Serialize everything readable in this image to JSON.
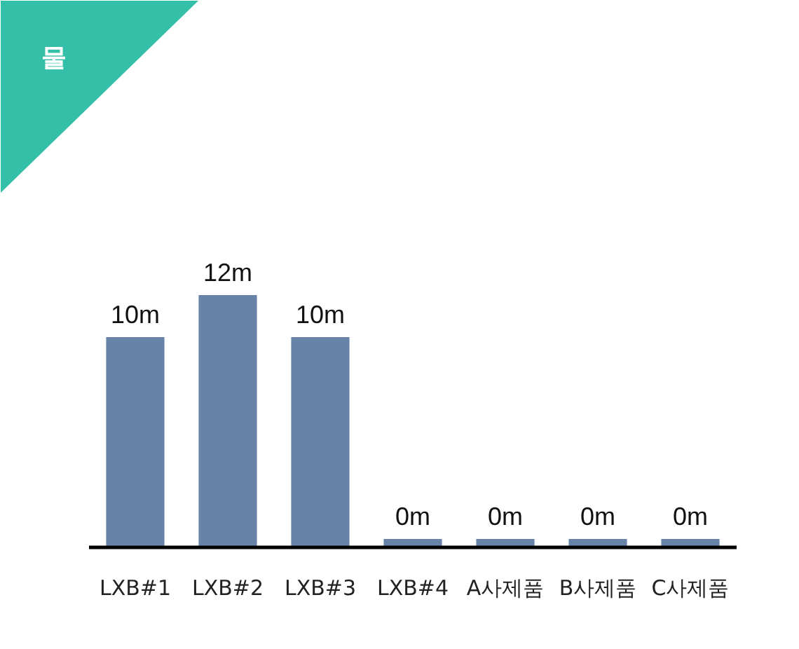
{
  "chart_data": {
    "type": "bar",
    "title": "물",
    "categories": [
      "LXB#1",
      "LXB#2",
      "LXB#3",
      "LXB#4",
      "A사제품",
      "B사제품",
      "C사제품"
    ],
    "values": [
      10,
      12,
      10,
      0.4,
      0.4,
      0.4,
      0.4
    ],
    "value_labels": [
      "10m",
      "12m",
      "10m",
      "0m",
      "0m",
      "0m",
      "0m"
    ],
    "color": "#6883a8",
    "grid": false
  }
}
